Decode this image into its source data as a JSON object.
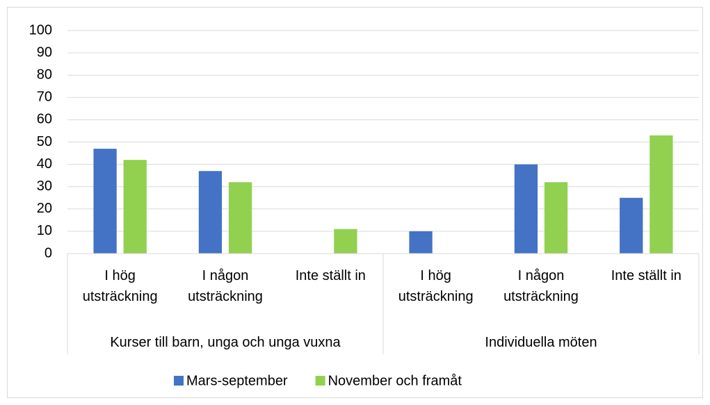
{
  "chart_data": {
    "type": "bar",
    "groups": [
      {
        "name": "Kurser till barn, unga och unga vuxna",
        "categories": [
          "I hög utsträckning",
          "I någon utsträckning",
          "Inte ställt in"
        ]
      },
      {
        "name": "Individuella möten",
        "categories": [
          "I hög utsträckning",
          "I någon utsträckning",
          "Inte ställt in"
        ]
      }
    ],
    "series": [
      {
        "name": "Mars-september",
        "color": "#4472c4",
        "values": [
          47,
          37,
          0,
          10,
          40,
          25
        ]
      },
      {
        "name": "November och framåt",
        "color": "#92d050",
        "values": [
          42,
          32,
          11,
          0,
          32,
          53
        ]
      }
    ],
    "ylim": [
      0,
      100
    ],
    "yticks": [
      0,
      10,
      20,
      30,
      40,
      50,
      60,
      70,
      80,
      90,
      100
    ],
    "grid": true,
    "legend": "bottom"
  }
}
